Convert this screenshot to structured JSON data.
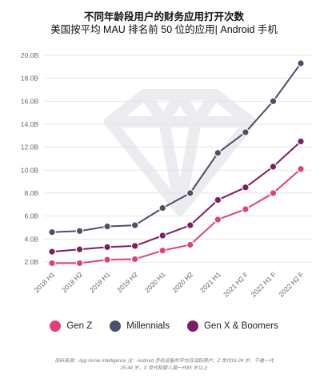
{
  "title": "不同年龄段用户的财务应用打开次数",
  "subtitle": "美国按平均 MAU 排名前 50 位的应用| Android 手机",
  "footnote": {
    "line1": "资料来源：App Annie Intelligence 注：Android 手机设备的平均月活跃用户；Z 世代16-24 岁，千禧一代",
    "line2": "25-44 岁，X 世代和婴儿潮一代45 岁以上"
  },
  "chart_data": {
    "type": "line",
    "title": "不同年龄段用户的财务应用打开次数",
    "subtitle": "美国按平均 MAU 排名前 50 位的应用| Android 手机",
    "x": [
      "2018 H1",
      "2018 H2",
      "2019 H1",
      "2019 H2",
      "2020 H1",
      "2020 H2",
      "2021 H1",
      "2021 H2 F",
      "2022 H1 F",
      "2022 H2 F"
    ],
    "yticks": [
      "2.0B",
      "4.0B",
      "6.0B",
      "8.0B",
      "10.0B",
      "12.0B",
      "14.0B",
      "16.0B",
      "18.0B",
      "20.0B"
    ],
    "ylim": [
      2,
      20
    ],
    "grid": true,
    "legend_position": "bottom",
    "series": [
      {
        "name": "Gen Z",
        "color": "#E0407A",
        "values": [
          1.9,
          1.9,
          2.2,
          2.25,
          3.0,
          3.5,
          5.7,
          6.6,
          8.0,
          10.1
        ]
      },
      {
        "name": "Millennials",
        "color": "#4A5068",
        "values": [
          4.6,
          4.7,
          5.1,
          5.2,
          6.7,
          8.0,
          11.5,
          13.3,
          16.0,
          19.3
        ]
      },
      {
        "name": "Gen X & Boomers",
        "color": "#7D1E63",
        "values": [
          2.9,
          3.1,
          3.3,
          3.4,
          4.3,
          5.2,
          7.4,
          8.5,
          10.3,
          12.5
        ]
      }
    ]
  }
}
